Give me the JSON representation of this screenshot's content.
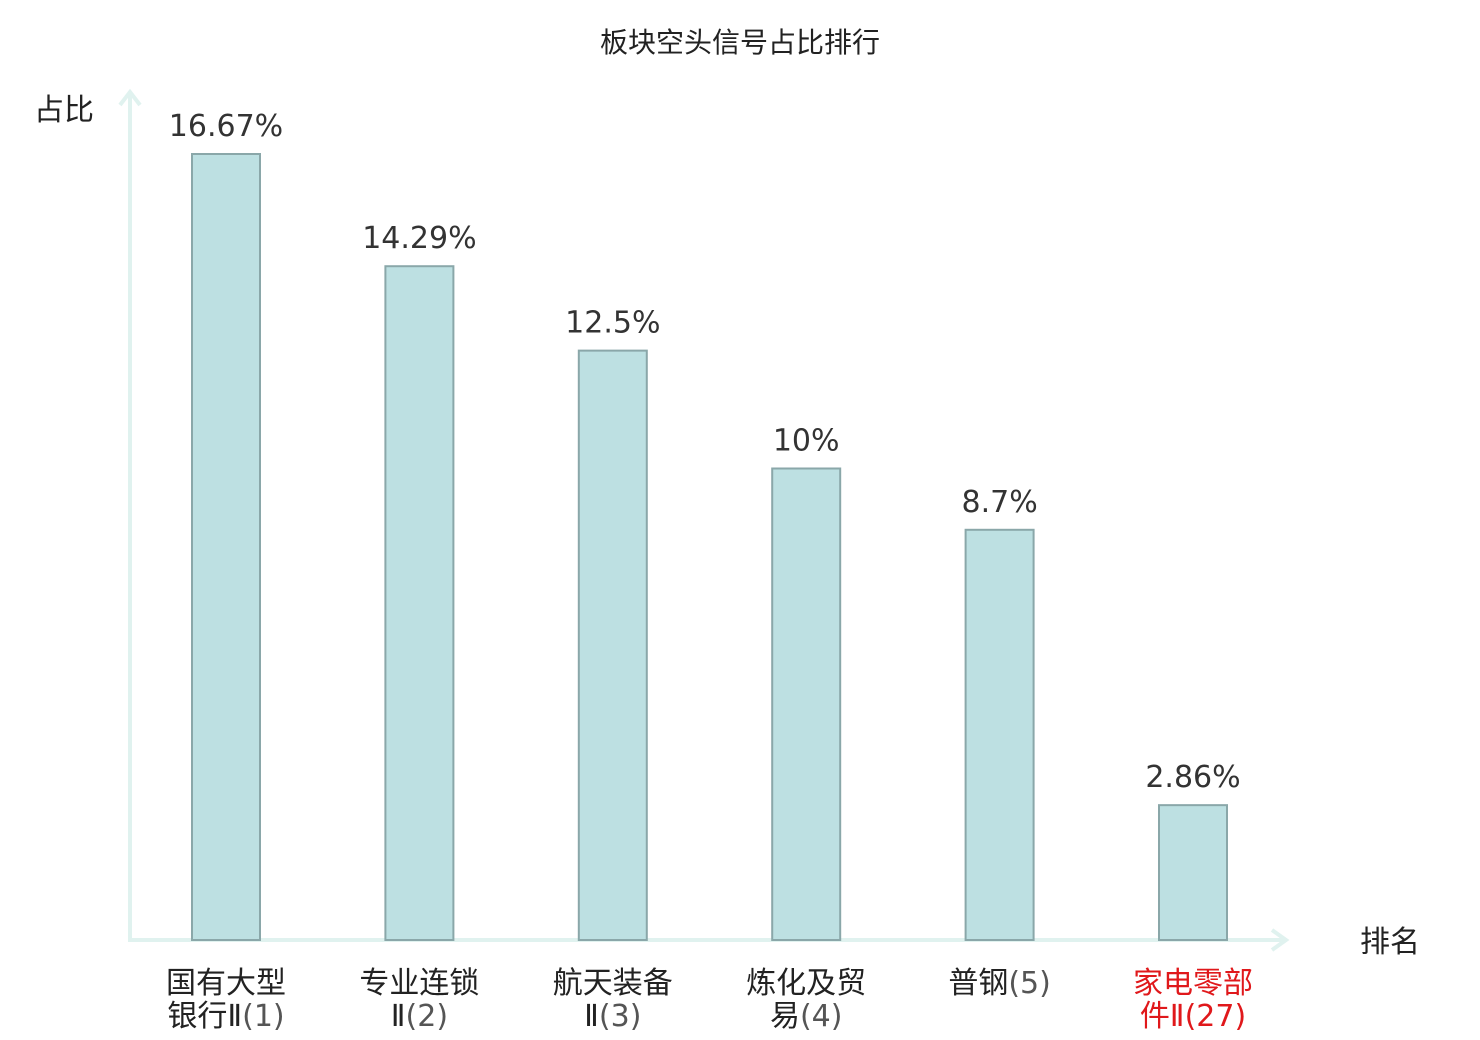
{
  "chart_data": {
    "type": "bar",
    "title": "板块空头信号占比排行",
    "ylabel": "占比",
    "xlabel": "排名",
    "ylim": [
      0,
      18
    ],
    "grid": false,
    "categories": [
      {
        "name_lines": [
          "国有大型",
          "银行Ⅱ"
        ],
        "rank": "(1)",
        "highlight": false
      },
      {
        "name_lines": [
          "专业连锁",
          "Ⅱ"
        ],
        "rank": "(2)",
        "highlight": false
      },
      {
        "name_lines": [
          "航天装备",
          "Ⅱ"
        ],
        "rank": "(3)",
        "highlight": false
      },
      {
        "name_lines": [
          "炼化及贸",
          "易"
        ],
        "rank": "(4)",
        "highlight": false
      },
      {
        "name_lines": [
          "普钢"
        ],
        "rank": "(5)",
        "highlight": false
      },
      {
        "name_lines": [
          "家电零部",
          "件Ⅱ"
        ],
        "rank": "(27)",
        "highlight": true
      }
    ],
    "values": [
      16.67,
      14.29,
      12.5,
      10,
      8.7,
      2.86
    ],
    "value_labels": [
      "16.67%",
      "14.29%",
      "12.5%",
      "10%",
      "8.7%",
      "2.86%"
    ],
    "colors": {
      "bar_fill": "#bde0e2",
      "bar_stroke": "#8aa7a9",
      "axis": "#e0f2ef",
      "highlight_text": "#e0181b"
    }
  }
}
